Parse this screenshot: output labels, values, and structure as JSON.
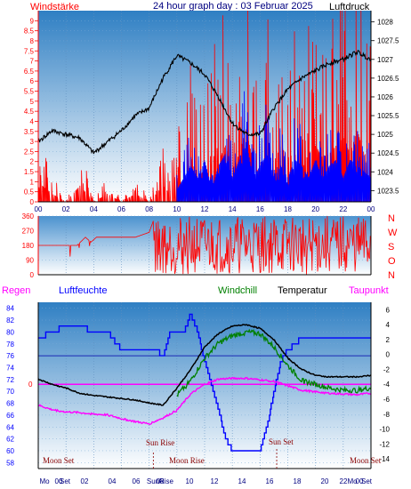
{
  "header": {
    "left_label": "Windstärke",
    "title": "24 hour graph day : 03 Februar 2025",
    "right_label": "Luftdruck"
  },
  "colors": {
    "red": "#ff0000",
    "blue": "#0000ff",
    "green": "#008000",
    "black": "#000000",
    "magenta": "#ff00ff",
    "navy": "#000080",
    "gradient_top": "#3a86c8",
    "gradient_bottom": "#ffffff"
  },
  "chart_data": [
    {
      "type": "line",
      "name": "wind-pressure",
      "x_ticks": [
        "00",
        "02",
        "04",
        "06",
        "08",
        "10",
        "12",
        "14",
        "16",
        "18",
        "20",
        "22",
        "00"
      ],
      "left_ticks": [
        "0",
        "0.5",
        "1",
        "1.5",
        "2",
        "2.5",
        "3",
        "3.5",
        "4",
        "4.5",
        "5",
        "5.5",
        "6",
        "6.5",
        "7",
        "7.5",
        "8",
        "8.5",
        "9"
      ],
      "right_ticks": [
        "1023.5",
        "1024",
        "1024.5",
        "1025",
        "1025.5",
        "1026",
        "1026.5",
        "1027",
        "1027.5",
        "1028"
      ],
      "left_ylim": [
        0,
        9.5
      ],
      "right_ylim": [
        1023.2,
        1028.3
      ],
      "pressure_x": [
        0,
        1,
        2,
        3,
        4,
        5,
        6,
        7,
        8,
        9,
        10,
        11,
        12,
        13,
        14,
        15,
        16,
        17,
        18,
        19,
        20,
        21,
        22,
        23,
        24
      ],
      "pressure": [
        1024.8,
        1025.1,
        1025.0,
        1024.9,
        1024.5,
        1024.8,
        1025.1,
        1025.5,
        1025.7,
        1026.5,
        1027.1,
        1026.9,
        1026.6,
        1026.0,
        1025.3,
        1025.0,
        1025.0,
        1025.7,
        1026.2,
        1026.5,
        1026.7,
        1026.9,
        1027.0,
        1027.2,
        1027.0
      ],
      "wind_gust_red": [
        [
          0,
          1
        ],
        [
          0.3,
          2
        ],
        [
          1,
          1
        ],
        [
          2,
          0
        ],
        [
          3,
          2
        ],
        [
          3.5,
          1
        ],
        [
          4,
          0
        ],
        [
          5,
          1
        ],
        [
          6,
          0
        ],
        [
          7,
          1
        ],
        [
          8,
          0
        ],
        [
          9,
          2
        ],
        [
          9.5,
          1
        ],
        [
          10,
          3
        ],
        [
          10.5,
          2
        ],
        [
          11,
          5.5
        ],
        [
          11.5,
          3
        ],
        [
          12,
          4
        ],
        [
          12.5,
          6
        ],
        [
          13,
          5
        ],
        [
          13.5,
          7
        ],
        [
          14,
          4
        ],
        [
          14.5,
          6
        ],
        [
          15,
          9
        ],
        [
          15.5,
          5
        ],
        [
          16,
          3.5
        ],
        [
          16.5,
          7
        ],
        [
          17,
          5
        ],
        [
          17.5,
          7
        ],
        [
          18,
          5.5
        ],
        [
          18.5,
          6
        ],
        [
          19,
          4
        ],
        [
          19.5,
          6
        ],
        [
          20,
          7
        ],
        [
          20.5,
          5.5
        ],
        [
          21,
          6
        ],
        [
          21.5,
          7
        ],
        [
          22,
          8
        ],
        [
          22.5,
          6
        ],
        [
          23,
          9
        ],
        [
          23.5,
          6
        ],
        [
          24,
          5.5
        ]
      ],
      "wind_avg_blue": [
        [
          10,
          1
        ],
        [
          10.5,
          2
        ],
        [
          11,
          3
        ],
        [
          11.5,
          2
        ],
        [
          12,
          3.5
        ],
        [
          12.5,
          1
        ],
        [
          13,
          3
        ],
        [
          13.5,
          4
        ],
        [
          14,
          2
        ],
        [
          14.5,
          3.5
        ],
        [
          15,
          5
        ],
        [
          15.5,
          2
        ],
        [
          16,
          3
        ],
        [
          16.5,
          4
        ],
        [
          17,
          2
        ],
        [
          17.5,
          3
        ],
        [
          18,
          2
        ],
        [
          18.5,
          3.5
        ],
        [
          19,
          3
        ],
        [
          19.5,
          2
        ],
        [
          20,
          3.5
        ],
        [
          20.5,
          2
        ],
        [
          21,
          3
        ],
        [
          21.5,
          3.5
        ],
        [
          22,
          2
        ],
        [
          22.5,
          3.5
        ],
        [
          23,
          3
        ],
        [
          23.5,
          2.5
        ],
        [
          24,
          2
        ]
      ]
    },
    {
      "type": "line",
      "name": "wind-direction",
      "left_ticks": [
        "0",
        "90",
        "180",
        "270",
        "360"
      ],
      "right_labels": [
        "N",
        "W",
        "S",
        "O",
        "N"
      ],
      "ylim": [
        0,
        360
      ],
      "direction_x": [
        0,
        1,
        2,
        2.8,
        3.4,
        3.8,
        4.2,
        5,
        6,
        7,
        8,
        8.3,
        9,
        9.5,
        10,
        11,
        12,
        13,
        14,
        15,
        16,
        17,
        18,
        19,
        20,
        21,
        22,
        23,
        24
      ],
      "direction": [
        180,
        180,
        180,
        180,
        230,
        200,
        230,
        230,
        230,
        230,
        260,
        330,
        230,
        100,
        80,
        60,
        40,
        200,
        90,
        300,
        60,
        250,
        80,
        300,
        120,
        260,
        60,
        300,
        150
      ]
    },
    {
      "type": "line",
      "name": "humidity-temperature",
      "left_ticks": [
        "58",
        "60",
        "62",
        "64",
        "66",
        "68",
        "70",
        "72",
        "74",
        "76",
        "78",
        "80",
        "82",
        "84"
      ],
      "right_ticks": [
        "-14",
        "-12",
        "-10",
        "-8",
        "-6",
        "-4",
        "-2",
        "0",
        "2",
        "4",
        "6"
      ],
      "left_ylim": [
        57,
        85
      ],
      "right_ylim": [
        -15.3,
        7
      ],
      "rain_label": "0",
      "series": [
        {
          "name": "Luftfeuchte",
          "x": [
            0,
            1,
            2,
            3,
            4,
            5,
            6,
            7,
            8,
            8.5,
            9,
            9.5,
            10,
            10.5,
            11,
            11.5,
            12,
            12.5,
            13,
            13.5,
            14,
            15,
            16,
            16.5,
            17,
            17.5,
            18,
            19,
            20,
            21,
            22,
            23,
            24
          ],
          "y": [
            79,
            80,
            81,
            81,
            80,
            80,
            77,
            77,
            77,
            77,
            76,
            80,
            80,
            80,
            83,
            80,
            75,
            71,
            67,
            62,
            60,
            60,
            60,
            64,
            70,
            75,
            77,
            79,
            79,
            79,
            79,
            79,
            79
          ]
        },
        {
          "name": "Temperatur",
          "x": [
            0,
            1,
            2,
            3,
            4,
            5,
            6,
            7,
            8,
            9,
            10,
            11,
            12,
            13,
            14,
            15,
            16,
            17,
            18,
            19,
            20,
            21,
            22,
            23,
            24
          ],
          "y": [
            -3.3,
            -4.0,
            -4.5,
            -5.2,
            -5.5,
            -5.7,
            -5.9,
            -6.1,
            -6.5,
            -6.8,
            -4.5,
            -2.0,
            1.0,
            2.8,
            3.8,
            4.0,
            3.5,
            2.0,
            -0.5,
            -2.0,
            -2.8,
            -3.0,
            -3.0,
            -3.0,
            -2.8
          ]
        },
        {
          "name": "Windchill",
          "x": [
            10,
            11,
            12,
            13,
            14,
            15,
            16,
            17,
            18,
            19,
            20,
            21,
            22,
            23,
            24
          ],
          "y": [
            -5.5,
            -3.5,
            -0.5,
            1.5,
            2.5,
            3.0,
            2.8,
            1.0,
            -1.5,
            -3.5,
            -4.0,
            -4.5,
            -4.8,
            -4.8,
            -4.5
          ]
        },
        {
          "name": "Taupunkt",
          "x": [
            0,
            1,
            2,
            3,
            4,
            5,
            6,
            7,
            8,
            9,
            10,
            11,
            12,
            13,
            14,
            15,
            16,
            17,
            18,
            19,
            20,
            21,
            22,
            23,
            24
          ],
          "y": [
            -6.8,
            -7.4,
            -7.7,
            -7.8,
            -8.0,
            -8.1,
            -8.6,
            -9.0,
            -9.3,
            -8.5,
            -7.5,
            -5.3,
            -4.0,
            -3.3,
            -3.2,
            -3.2,
            -3.4,
            -3.6,
            -4.2,
            -4.8,
            -5.0,
            -5.2,
            -5.3,
            -5.4,
            -5.2
          ]
        }
      ]
    }
  ],
  "legend_bottom": {
    "regen": "Regen",
    "luftfeuchte": "Luftfeuchte",
    "windchill": "Windchill",
    "temperatur": "Temperatur",
    "taupunkt": "Taupunkt"
  },
  "annotations": {
    "moon_set_left": "Moon Set",
    "sun_rise": "Sun Rise",
    "moon_rise": "Moon Rise",
    "sun_set": "Sun Set",
    "moon_set_right": "Moon Set"
  },
  "bottom_axis_labels": [
    "Mo",
    "00",
    "Set",
    "02",
    "04",
    "06",
    "Sun",
    "08",
    "Rise",
    "10",
    "12",
    "14",
    "16",
    "18",
    "20",
    "22",
    "Mo",
    "00",
    "Set"
  ]
}
